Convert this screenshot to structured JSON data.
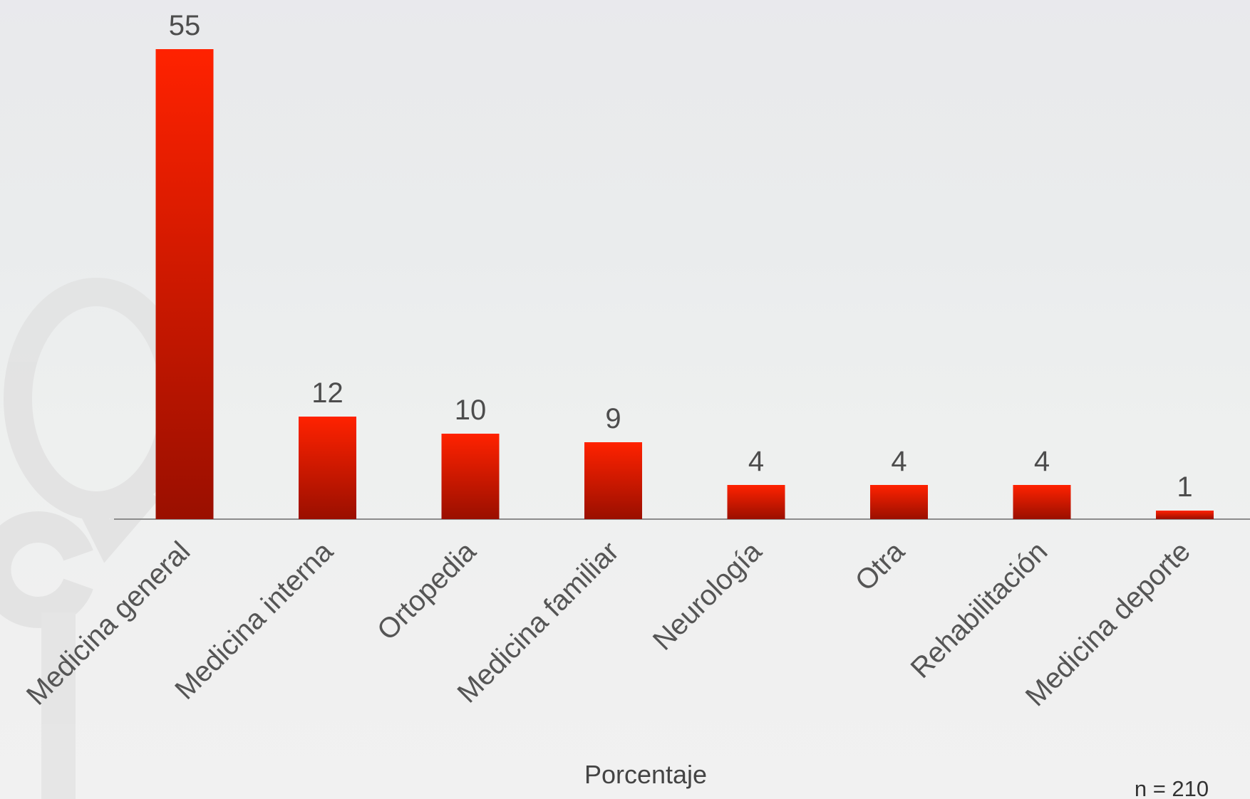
{
  "chart_data": {
    "type": "bar",
    "categories": [
      "Medicina general",
      "Medicina interna",
      "Ortopedia",
      "Medicina familiar",
      "Neurología",
      "Otra",
      "Rehabilitación",
      "Medicina deporte"
    ],
    "values": [
      55,
      12,
      10,
      9,
      4,
      4,
      4,
      1
    ],
    "title": "",
    "xlabel": "Porcentaje",
    "ylabel": "",
    "ylim": [
      0,
      55
    ],
    "grid": false,
    "legend": "none",
    "data_labels": true,
    "note": "n = 210"
  },
  "colors": {
    "bar_top": "#ff2200",
    "bar_bottom": "#9a0f00",
    "axis": "#8c8c8c",
    "watermark": "#e2e2e2"
  }
}
